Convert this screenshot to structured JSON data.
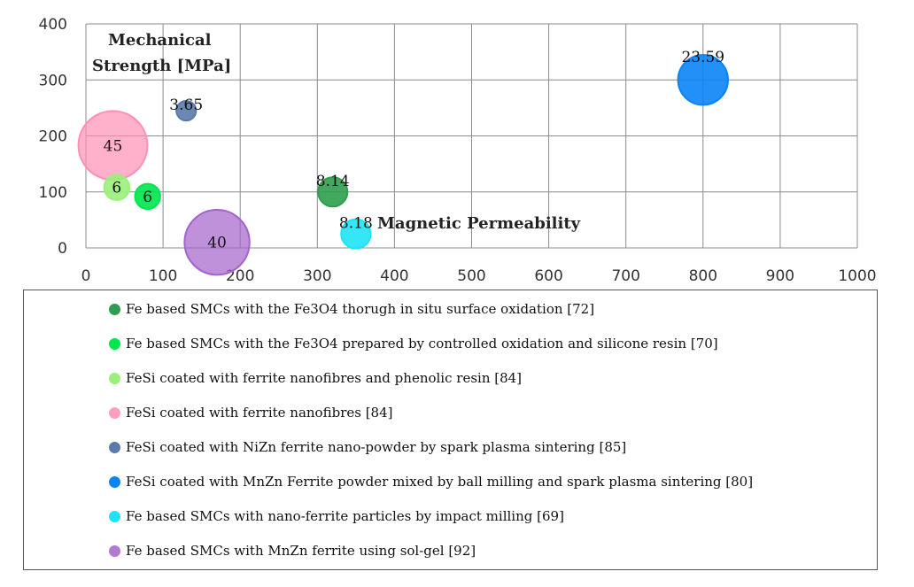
{
  "chart_data": {
    "type": "bubble",
    "title": "",
    "xlabel": "Magnetic Permeability",
    "ylabel_line1": "Mechanical",
    "ylabel_line2": "Strength [MPa]",
    "xlim": [
      0,
      1000
    ],
    "ylim": [
      0,
      400
    ],
    "x_ticks": [
      "0",
      "100",
      "200",
      "300",
      "400",
      "500",
      "600",
      "700",
      "800",
      "900",
      "1000"
    ],
    "y_ticks": [
      "0",
      "100",
      "200",
      "300",
      "400"
    ],
    "grid": true,
    "series": [
      {
        "name": "Fe based SMCs with the Fe3O4 thorugh in situ surface oxidation [72]",
        "x": 320,
        "y": 100,
        "size": 8.14,
        "label": "8.14",
        "color": "#2e9e4f"
      },
      {
        "name": "Fe based SMCs with the Fe3O4 prepared by controlled oxidation and silicone resin [70]",
        "x": 80,
        "y": 92,
        "size": 6,
        "label": "6",
        "color": "#00e64d"
      },
      {
        "name": "FeSi coated with ferrite nanofibres and phenolic resin [84]",
        "x": 40,
        "y": 108,
        "size": 6,
        "label": "6",
        "color": "#99f07a"
      },
      {
        "name": "FeSi coated with ferrite nanofibres [84]",
        "x": 35,
        "y": 183,
        "size": 45,
        "label": "45",
        "color": "#ff8fb3"
      },
      {
        "name": "FeSi coated with NiZn ferrite nano-powder by spark plasma sintering [85]",
        "x": 130,
        "y": 245,
        "size": 3.65,
        "label": "3.65",
        "color": "#5b7bab"
      },
      {
        "name": "FeSi coated with MnZn Ferrite powder mixed by ball milling and spark plasma sintering [80]",
        "x": 800,
        "y": 300,
        "size": 23.59,
        "label": "23.59",
        "color": "#0a84f5"
      },
      {
        "name": "Fe based SMCs with nano-ferrite particles by impact milling [69]",
        "x": 350,
        "y": 25,
        "size": 8.18,
        "label": "8.18",
        "color": "#1ee3f5"
      },
      {
        "name": "Fe based SMCs with MnZn ferrite using sol-gel [92]",
        "x": 170,
        "y": 10,
        "size": 40,
        "label": "40",
        "color": "#a463cc"
      }
    ]
  },
  "legend_items": [
    "Fe based SMCs with the Fe3O4 thorugh in situ surface oxidation [72]",
    "Fe based SMCs with the Fe3O4 prepared by controlled oxidation and silicone resin [70]",
    "FeSi coated with ferrite nanofibres and phenolic resin [84]",
    "FeSi coated with ferrite nanofibres [84]",
    "FeSi coated with NiZn ferrite nano-powder by spark plasma sintering [85]",
    "FeSi coated with MnZn Ferrite powder mixed by ball milling and spark plasma sintering [80]",
    "Fe based SMCs with nano-ferrite particles by impact milling [69]",
    "Fe based SMCs with MnZn ferrite using sol-gel [92]"
  ]
}
